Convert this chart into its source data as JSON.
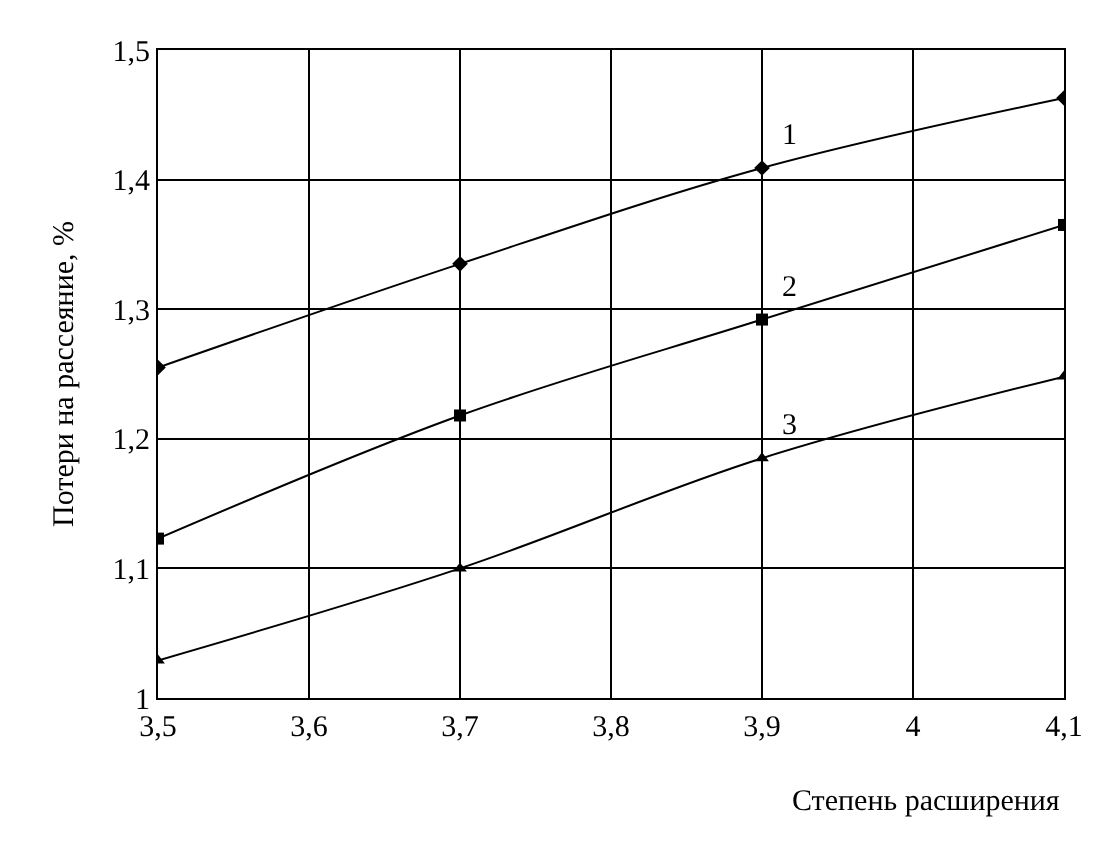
{
  "chart_data": {
    "type": "line",
    "xlabel": "Степень расширения",
    "ylabel": "Потери на рассеяние, %",
    "x": [
      3.5,
      3.7,
      3.9,
      4.1
    ],
    "series": [
      {
        "color": "#000000",
        "marker": "diamond",
        "values": [
          1.255,
          1.335,
          1.409,
          1.463
        ]
      },
      {
        "color": "#000000",
        "marker": "square",
        "values": [
          1.123,
          1.218,
          1.292,
          1.365
        ]
      },
      {
        "color": "#000000",
        "marker": "triangle",
        "values": [
          1.029,
          1.1,
          1.185,
          1.248
        ]
      }
    ],
    "annotations": [
      "1",
      "2",
      "3"
    ],
    "xlim": [
      3.5,
      4.1
    ],
    "xticks": [
      {
        "value": 3.5,
        "label": "3,5"
      },
      {
        "value": 3.6,
        "label": "3,6"
      },
      {
        "value": 3.7,
        "label": "3,7"
      },
      {
        "value": 3.8,
        "label": "3,8"
      },
      {
        "value": 3.9,
        "label": "3,9"
      },
      4,
      {
        "value": 4.1,
        "label": "4,1"
      }
    ],
    "ylim": [
      1,
      1.5
    ],
    "yticks": [
      1,
      {
        "value": 1.1,
        "label": "1,1"
      },
      {
        "value": 1.2,
        "label": "1,2"
      },
      {
        "value": 1.3,
        "label": "1,3"
      },
      {
        "value": 1.4,
        "label": "1,4"
      },
      {
        "value": 1.5,
        "label": "1,5"
      }
    ],
    "grid": true,
    "line_style": "solid"
  }
}
